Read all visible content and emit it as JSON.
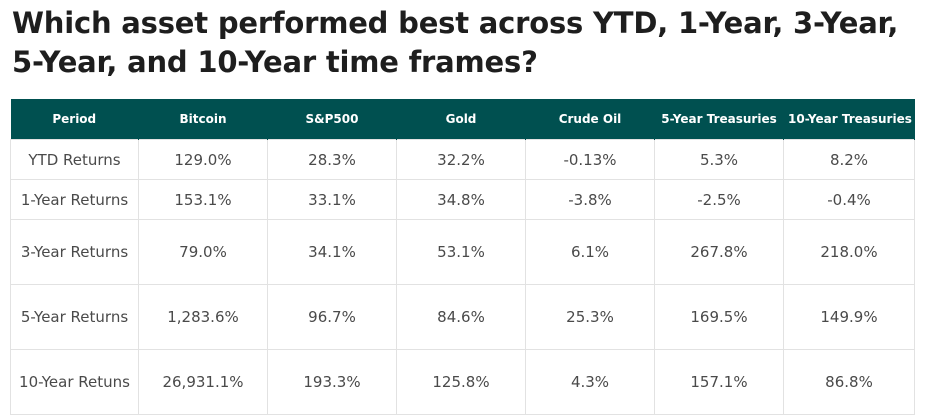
{
  "page": {
    "title": "Which asset performed best across YTD, 1-Year, 3-Year, 5-Year, and 10-Year time frames?"
  },
  "chart_data": {
    "type": "table",
    "title": "Which asset performed best across YTD, 1-Year, 3-Year, 5-Year, and 10-Year time frames?",
    "colors": {
      "header_background": "#005050",
      "header_text": "#ffffff",
      "cell_border": "#e2e2e2"
    },
    "columns": [
      "Period",
      "Bitcoin",
      "S&P500",
      "Gold",
      "Crude Oil",
      "5-Year Treasuries",
      "10-Year Treasuries"
    ],
    "rows": [
      {
        "period": "YTD Returns",
        "values": [
          "129.0%",
          "28.3%",
          "32.2%",
          "-0.13%",
          "5.3%",
          "8.2%"
        ]
      },
      {
        "period": "1-Year Returns",
        "values": [
          "153.1%",
          "33.1%",
          "34.8%",
          "-3.8%",
          "-2.5%",
          "-0.4%"
        ]
      },
      {
        "period": "3-Year Returns",
        "values": [
          "79.0%",
          "34.1%",
          "53.1%",
          "6.1%",
          "267.8%",
          "218.0%"
        ]
      },
      {
        "period": "5-Year Returns",
        "values": [
          "1,283.6%",
          "96.7%",
          "84.6%",
          "25.3%",
          "169.5%",
          "149.9%"
        ]
      },
      {
        "period": "10-Year Retuns",
        "values": [
          "26,931.1%",
          "193.3%",
          "125.8%",
          "4.3%",
          "157.1%",
          "86.8%"
        ]
      }
    ]
  }
}
